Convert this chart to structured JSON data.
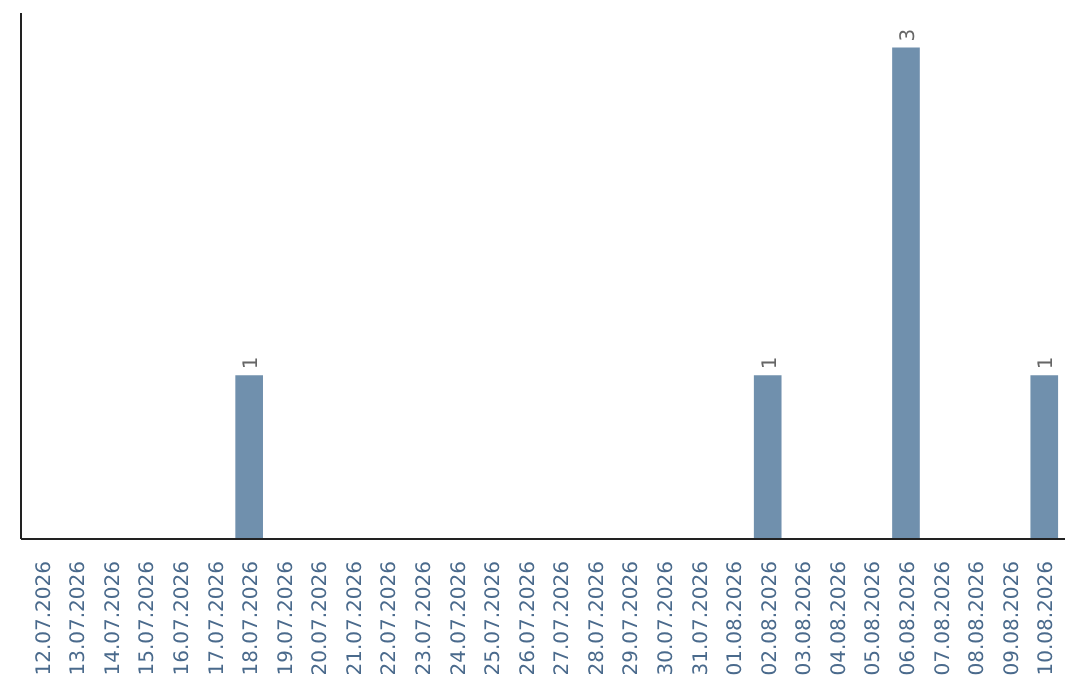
{
  "chart_data": {
    "type": "bar",
    "categories": [
      "12.07.2026",
      "13.07.2026",
      "14.07.2026",
      "15.07.2026",
      "16.07.2026",
      "17.07.2026",
      "18.07.2026",
      "19.07.2026",
      "20.07.2026",
      "21.07.2026",
      "22.07.2026",
      "23.07.2026",
      "24.07.2026",
      "25.07.2026",
      "26.07.2026",
      "27.07.2026",
      "28.07.2026",
      "29.07.2026",
      "30.07.2026",
      "31.07.2026",
      "01.08.2026",
      "02.08.2026",
      "03.08.2026",
      "04.08.2026",
      "05.08.2026",
      "06.08.2026",
      "07.08.2026",
      "08.08.2026",
      "09.08.2026",
      "10.08.2026"
    ],
    "values": [
      0,
      0,
      0,
      0,
      0,
      0,
      1,
      0,
      0,
      0,
      0,
      0,
      0,
      0,
      0,
      0,
      0,
      0,
      0,
      0,
      0,
      1,
      0,
      0,
      0,
      3,
      0,
      0,
      0,
      1
    ],
    "value_labels": [
      null,
      null,
      null,
      null,
      null,
      null,
      "1",
      null,
      null,
      null,
      null,
      null,
      null,
      null,
      null,
      null,
      null,
      null,
      null,
      null,
      null,
      "1",
      null,
      null,
      null,
      "3",
      null,
      null,
      null,
      "1"
    ],
    "color": "#7090ad",
    "grid": false
  }
}
